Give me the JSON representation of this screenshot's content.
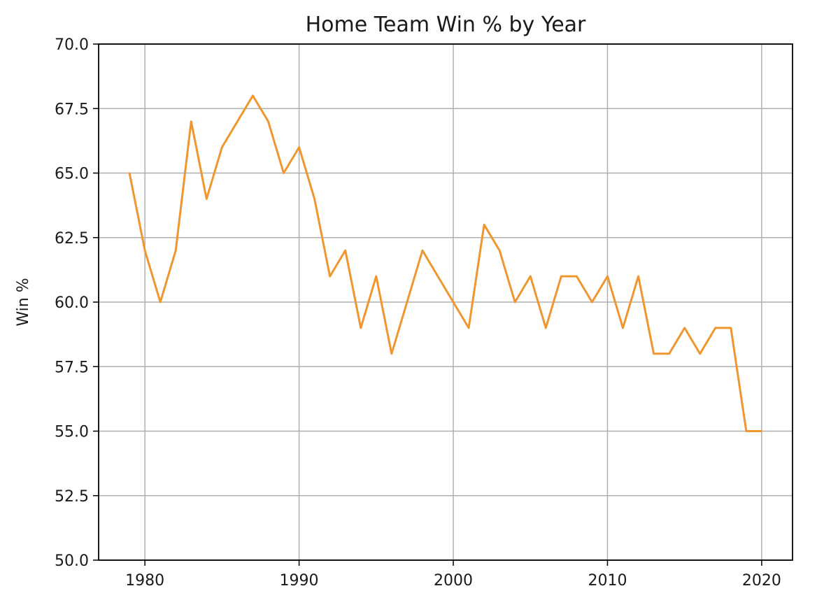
{
  "chart_data": {
    "type": "line",
    "title": "Home Team Win % by Year",
    "xlabel": "",
    "ylabel": "Win %",
    "xlim": [
      1977,
      2022
    ],
    "ylim": [
      50.0,
      70.0
    ],
    "x_ticks": [
      1980,
      1990,
      2000,
      2010,
      2020
    ],
    "x_tick_labels": [
      "1980",
      "1990",
      "2000",
      "2010",
      "2020"
    ],
    "y_ticks": [
      50.0,
      52.5,
      55.0,
      57.5,
      60.0,
      62.5,
      65.0,
      67.5,
      70.0
    ],
    "y_tick_labels": [
      "50.0",
      "52.5",
      "55.0",
      "57.5",
      "60.0",
      "62.5",
      "65.0",
      "67.5",
      "70.0"
    ],
    "grid": true,
    "series": [
      {
        "color": "#f0962f",
        "x": [
          1979,
          1980,
          1981,
          1982,
          1983,
          1984,
          1985,
          1986,
          1987,
          1988,
          1989,
          1990,
          1991,
          1992,
          1993,
          1994,
          1995,
          1996,
          1997,
          1998,
          1999,
          2000,
          2001,
          2002,
          2003,
          2004,
          2005,
          2006,
          2007,
          2008,
          2009,
          2010,
          2011,
          2012,
          2013,
          2014,
          2015,
          2016,
          2017,
          2018,
          2019,
          2020
        ],
        "y": [
          65,
          62,
          60,
          62,
          67,
          64,
          66,
          67,
          68,
          67,
          65,
          66,
          64,
          61,
          62,
          59,
          61,
          58,
          60,
          62,
          61,
          60,
          59,
          63,
          62,
          60,
          61,
          59,
          61,
          61,
          60,
          61,
          59,
          61,
          58,
          58,
          59,
          58,
          59,
          59,
          55,
          55
        ]
      }
    ]
  }
}
